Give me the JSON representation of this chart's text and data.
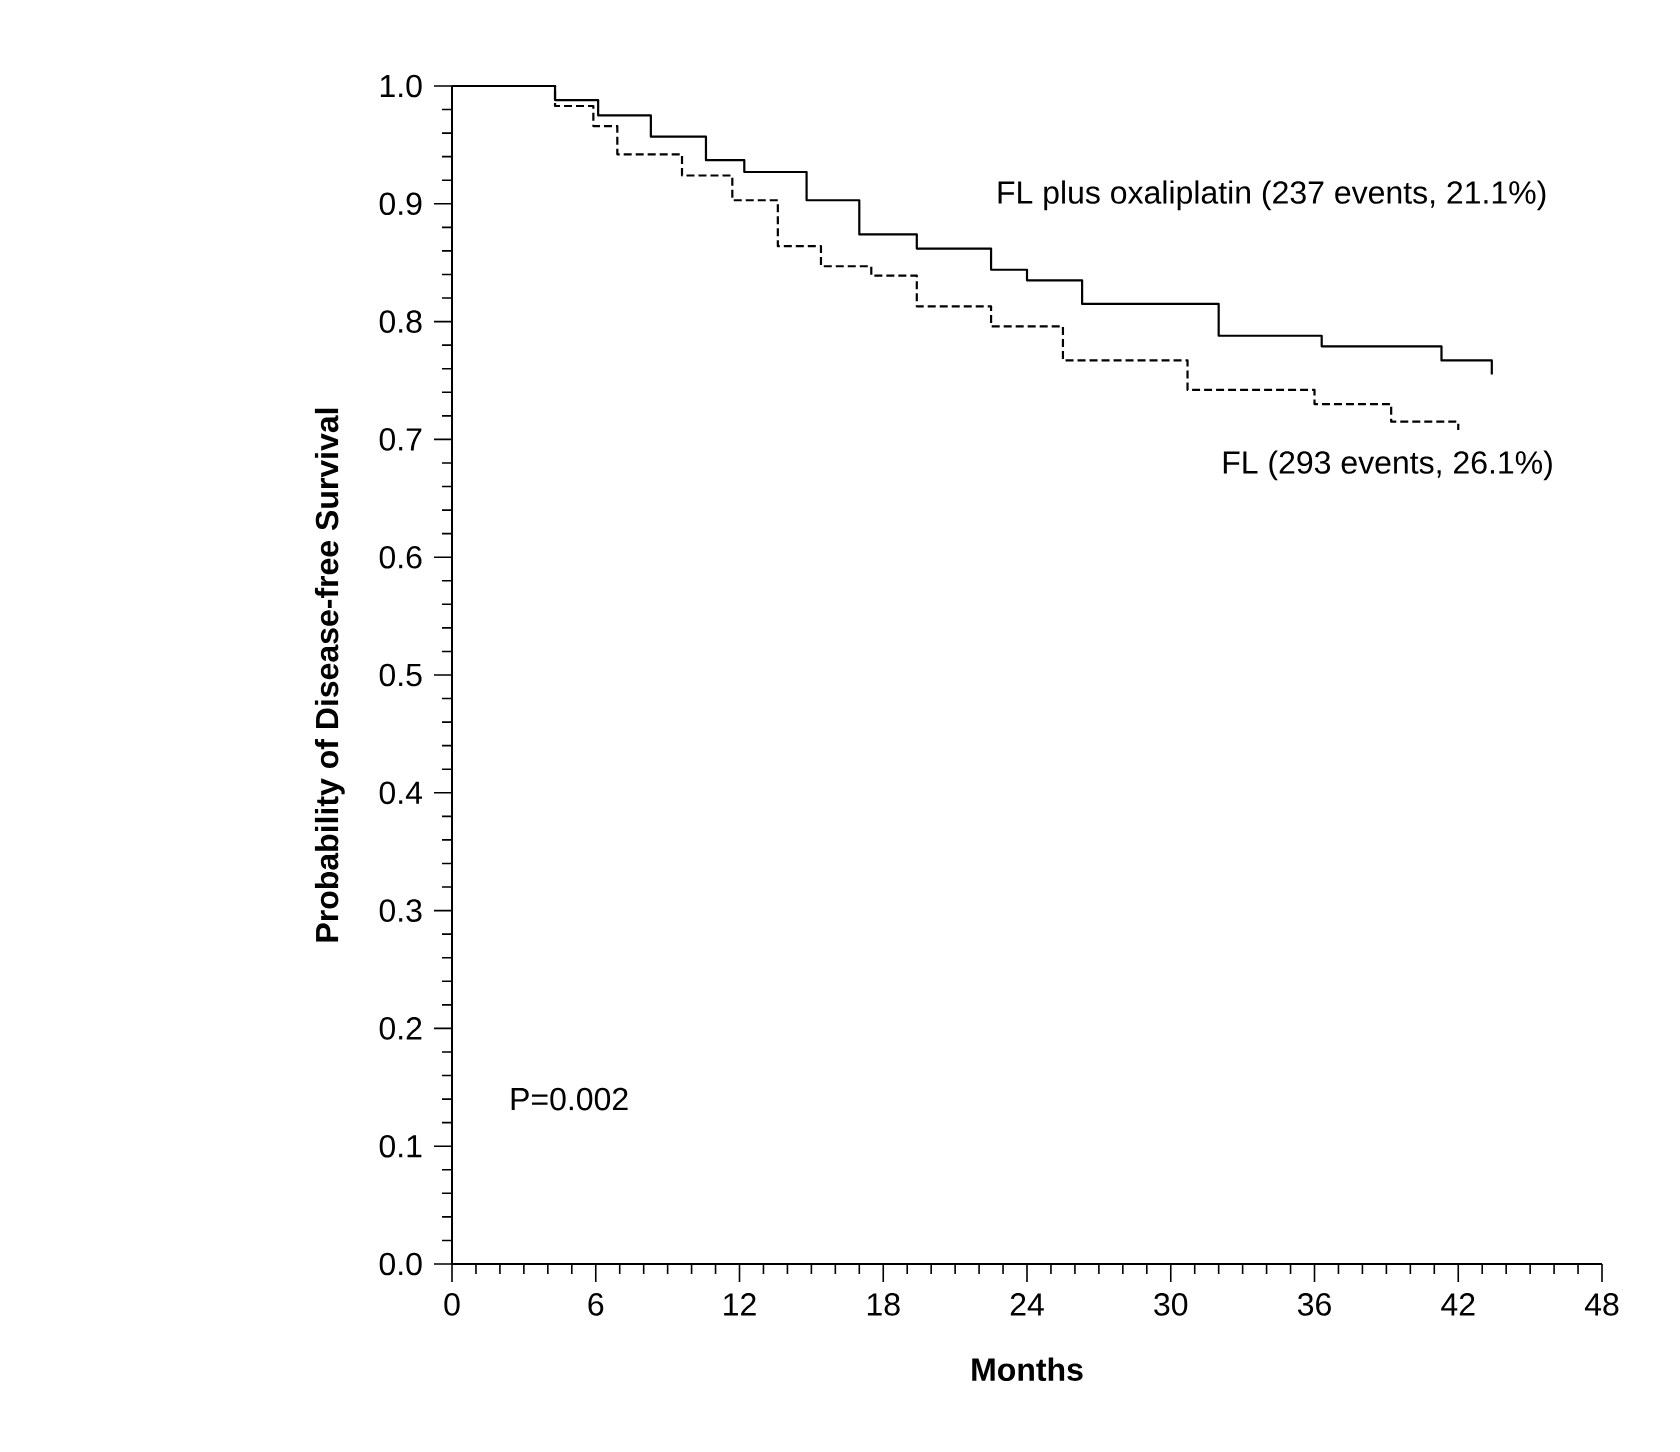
{
  "chart_data": {
    "type": "step",
    "xlabel": "Months",
    "ylabel": "Probability of Disease-free Survival",
    "xlim": [
      0,
      48
    ],
    "ylim": [
      0,
      1
    ],
    "xticks": [
      0,
      6,
      12,
      18,
      24,
      30,
      36,
      42,
      48
    ],
    "yticks": [
      {
        "value": 0,
        "label": "0.0"
      },
      0.1,
      0.2,
      0.3,
      0.4,
      0.5,
      0.6,
      0.7,
      0.8,
      0.9,
      {
        "value": 1,
        "label": "1.0"
      }
    ],
    "marker": "none",
    "grid": false,
    "legend": false,
    "annotations": [
      "P=0.002"
    ],
    "series": [
      {
        "name": "FL plus oxaliplatin (237 events, 21.1%)",
        "color": "#000000",
        "line_style": "solid",
        "x": [
          0,
          4.3,
          6.1,
          8.3,
          10.6,
          12.2,
          14.8,
          17,
          19.4,
          22.5,
          24,
          26.3,
          32,
          36.3,
          41.3,
          43.4
        ],
        "values": [
          1.0,
          0.988,
          0.975,
          0.957,
          0.937,
          0.927,
          0.903,
          0.874,
          0.862,
          0.844,
          0.835,
          0.815,
          0.788,
          0.779,
          0.767,
          0.755
        ]
      },
      {
        "name": "FL (293 events, 26.1%)",
        "color": "#000000",
        "line_style": "dashed",
        "x": [
          0,
          4.3,
          5.9,
          6.9,
          9.6,
          11.7,
          13.6,
          15.4,
          17.5,
          19.4,
          22.5,
          25.5,
          30.7,
          36,
          39.2,
          42
        ],
        "values": [
          1.0,
          0.983,
          0.966,
          0.942,
          0.924,
          0.903,
          0.864,
          0.847,
          0.839,
          0.813,
          0.796,
          0.767,
          0.742,
          0.73,
          0.715,
          0.708
        ]
      }
    ]
  }
}
